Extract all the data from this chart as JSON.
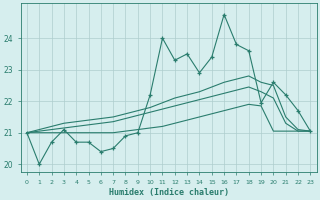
{
  "xlabel": "Humidex (Indice chaleur)",
  "x_values": [
    0,
    1,
    2,
    3,
    4,
    5,
    6,
    7,
    8,
    9,
    10,
    11,
    12,
    13,
    14,
    15,
    16,
    17,
    18,
    19,
    20,
    21,
    22,
    23
  ],
  "line_jagged": [
    21.0,
    20.0,
    20.7,
    21.1,
    20.7,
    20.7,
    20.4,
    20.5,
    20.9,
    21.0,
    22.2,
    24.0,
    23.3,
    23.5,
    22.9,
    23.4,
    24.75,
    23.8,
    23.6,
    21.95,
    22.6,
    22.2,
    21.7,
    21.05
  ],
  "line_upper": [
    21.0,
    21.1,
    21.2,
    21.3,
    21.35,
    21.4,
    21.45,
    21.5,
    21.6,
    21.7,
    21.8,
    21.95,
    22.1,
    22.2,
    22.3,
    22.45,
    22.6,
    22.7,
    22.8,
    22.6,
    22.5,
    21.5,
    21.1,
    21.05
  ],
  "line_mid": [
    21.0,
    21.05,
    21.1,
    21.15,
    21.2,
    21.25,
    21.3,
    21.35,
    21.45,
    21.55,
    21.65,
    21.75,
    21.85,
    21.95,
    22.05,
    22.15,
    22.25,
    22.35,
    22.45,
    22.3,
    22.1,
    21.3,
    21.05,
    21.05
  ],
  "line_lower": [
    21.0,
    21.0,
    21.0,
    21.0,
    21.0,
    21.0,
    21.0,
    21.0,
    21.05,
    21.1,
    21.15,
    21.2,
    21.3,
    21.4,
    21.5,
    21.6,
    21.7,
    21.8,
    21.9,
    21.85,
    21.05,
    21.05,
    21.05,
    21.05
  ],
  "line_color": "#2a7d6e",
  "bg_color": "#d6eeee",
  "grid_color": "#aecece",
  "ylim": [
    19.75,
    25.1
  ],
  "xlim": [
    -0.5,
    23.5
  ],
  "yticks": [
    20,
    21,
    22,
    23,
    24
  ],
  "xticks": [
    0,
    1,
    2,
    3,
    4,
    5,
    6,
    7,
    8,
    9,
    10,
    11,
    12,
    13,
    14,
    15,
    16,
    17,
    18,
    19,
    20,
    21,
    22,
    23
  ]
}
